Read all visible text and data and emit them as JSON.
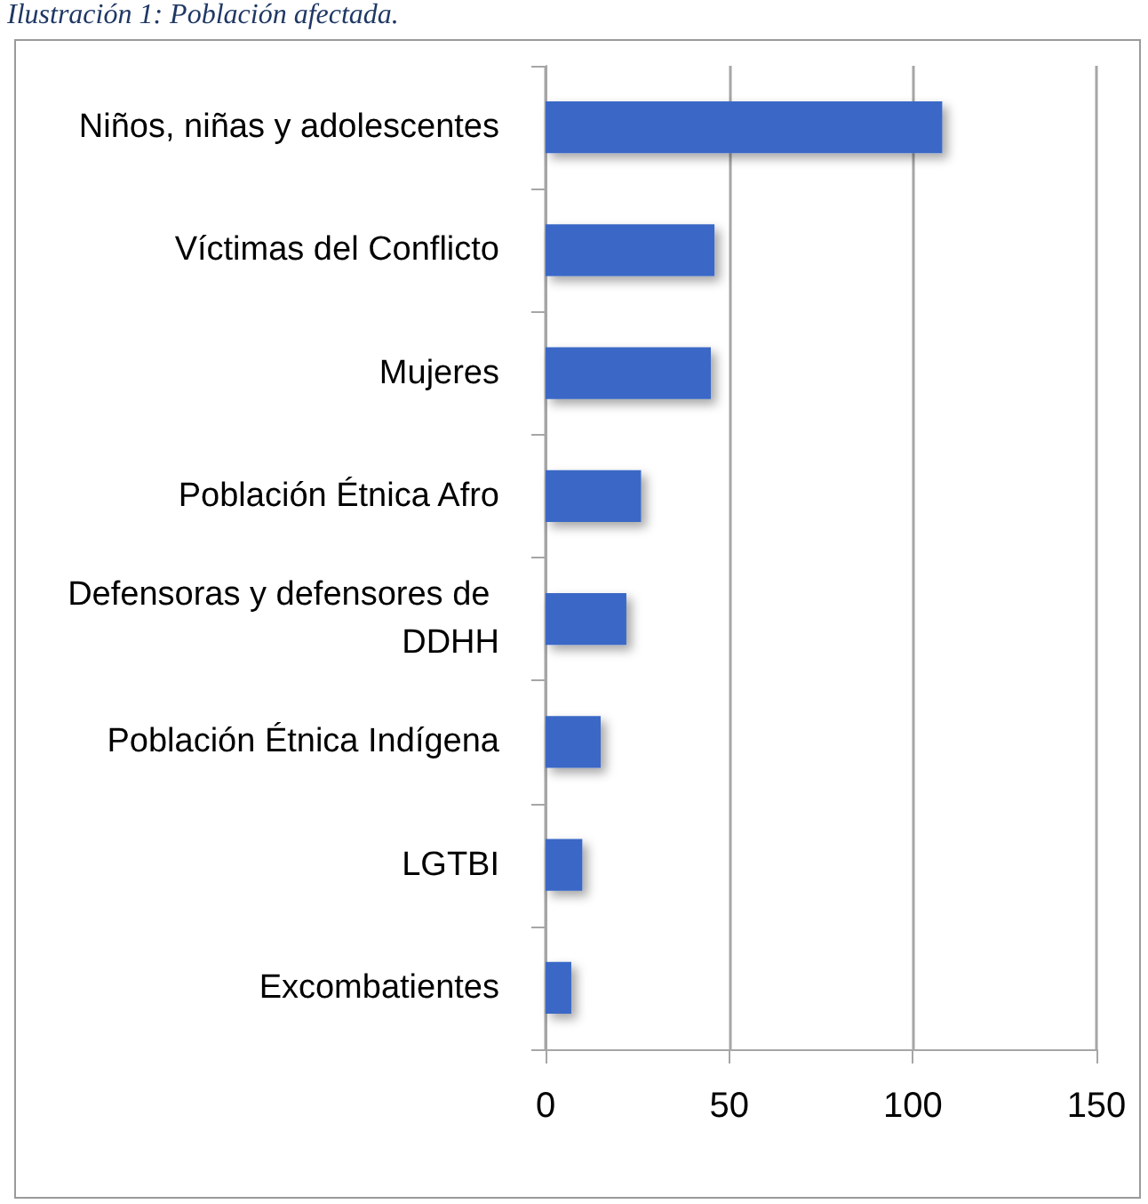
{
  "chart_data": {
    "type": "bar",
    "orientation": "horizontal",
    "title": "Ilustración 1: Población afectada.",
    "categories": [
      "Niños, niñas y adolescentes",
      "Víctimas del Conflicto",
      "Mujeres",
      "Población Étnica Afro",
      "Defensoras y defensores de DDHH",
      "Población Étnica Indígena",
      "LGTBI",
      "Excombatientes"
    ],
    "values": [
      108,
      46,
      45,
      26,
      22,
      15,
      10,
      7
    ],
    "color": "#3a68c6",
    "xlim": [
      0,
      150
    ],
    "xticks": [
      0,
      50,
      100,
      150
    ],
    "grid": "x"
  }
}
